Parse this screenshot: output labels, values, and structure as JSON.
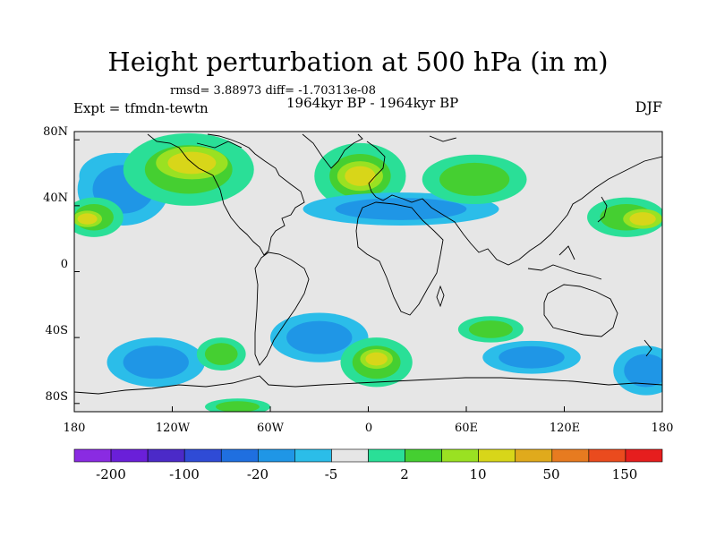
{
  "title": "Height perturbation at 500 hPa (in m)",
  "stats": "rmsd= 3.88973 diff= -1.70313e-08",
  "experiment": "Expt = tfmdn-tewtn",
  "period": "1964kyr BP - 1964kyr BP",
  "season": "DJF",
  "lat_labels": [
    "80N",
    "40N",
    "0",
    "40S",
    "80S"
  ],
  "lon_labels": [
    "180",
    "120W",
    "60W",
    "0",
    "60E",
    "120E",
    "180"
  ],
  "colorbar": {
    "colors": [
      "#8a2be2",
      "#6a1fd9",
      "#4b2ac8",
      "#2f4bd6",
      "#1f6fe0",
      "#1f96e6",
      "#2bbde9",
      "#e6e6e6",
      "#2adf97",
      "#45cf31",
      "#9ae122",
      "#d8d619",
      "#e0aa1c",
      "#e77b20",
      "#ea4b1e",
      "#e61e1e"
    ],
    "labels": [
      "-200",
      "-100",
      "-20",
      "-5",
      "2",
      "10",
      "50",
      "150"
    ]
  },
  "map": {
    "background": "#e6e6e6",
    "blobs": [
      {
        "name": "north-pacific-blue",
        "lon": -155,
        "lat": 58,
        "rx": 22,
        "ry": 14,
        "cls": "neg"
      },
      {
        "name": "north-pacific-cyan-fringe",
        "lon": -150,
        "lat": 50,
        "rx": 28,
        "ry": 22,
        "cls": "neg-light"
      },
      {
        "name": "ne-pacific-green",
        "lon": -110,
        "lat": 62,
        "rx": 40,
        "ry": 22,
        "cls": "pos"
      },
      {
        "name": "canada-yellow",
        "lon": -108,
        "lat": 66,
        "rx": 22,
        "ry": 10,
        "cls": "pos-strong"
      },
      {
        "name": "n-atlantic-green",
        "lon": -5,
        "lat": 58,
        "rx": 28,
        "ry": 20,
        "cls": "pos"
      },
      {
        "name": "n-atlantic-yellow",
        "lon": -5,
        "lat": 58,
        "rx": 14,
        "ry": 9,
        "cls": "pos-strong"
      },
      {
        "name": "asia-cyan",
        "lon": 20,
        "lat": 38,
        "rx": 60,
        "ry": 10,
        "cls": "neg-light"
      },
      {
        "name": "siberia-green",
        "lon": 65,
        "lat": 56,
        "rx": 32,
        "ry": 15,
        "cls": "pos"
      },
      {
        "name": "w-pacific-green",
        "lon": 158,
        "lat": 33,
        "rx": 24,
        "ry": 12,
        "cls": "pos"
      },
      {
        "name": "w-pacific-yellow",
        "lon": 168,
        "lat": 32,
        "rx": 12,
        "ry": 6,
        "cls": "pos-strong"
      },
      {
        "name": "dateline-green",
        "lon": -168,
        "lat": 33,
        "rx": 18,
        "ry": 12,
        "cls": "pos"
      },
      {
        "name": "dateline-yellow",
        "lon": -172,
        "lat": 32,
        "rx": 9,
        "ry": 5,
        "cls": "pos-strong"
      },
      {
        "name": "s-atlantic-cyan",
        "lon": -30,
        "lat": -40,
        "rx": 30,
        "ry": 15,
        "cls": "neg-light"
      },
      {
        "name": "s-ocean-green",
        "lon": 5,
        "lat": -55,
        "rx": 22,
        "ry": 15,
        "cls": "pos"
      },
      {
        "name": "s-ocean-yellow",
        "lon": 5,
        "lat": -53,
        "rx": 10,
        "ry": 6,
        "cls": "pos-strong"
      },
      {
        "name": "s-pacific-cyan",
        "lon": -130,
        "lat": -55,
        "rx": 30,
        "ry": 15,
        "cls": "neg-light"
      },
      {
        "name": "s-pacific-green",
        "lon": -90,
        "lat": -50,
        "rx": 15,
        "ry": 10,
        "cls": "pos"
      },
      {
        "name": "indian-ocean-green",
        "lon": 75,
        "lat": -35,
        "rx": 20,
        "ry": 8,
        "cls": "pos"
      },
      {
        "name": "s-indian-cyan",
        "lon": 100,
        "lat": -52,
        "rx": 30,
        "ry": 10,
        "cls": "neg-light"
      },
      {
        "name": "s-pacific-east-cyan",
        "lon": 170,
        "lat": -60,
        "rx": 20,
        "ry": 15,
        "cls": "neg-light"
      },
      {
        "name": "antarctic-green",
        "lon": -80,
        "lat": -82,
        "rx": 20,
        "ry": 5,
        "cls": "pos"
      }
    ]
  }
}
